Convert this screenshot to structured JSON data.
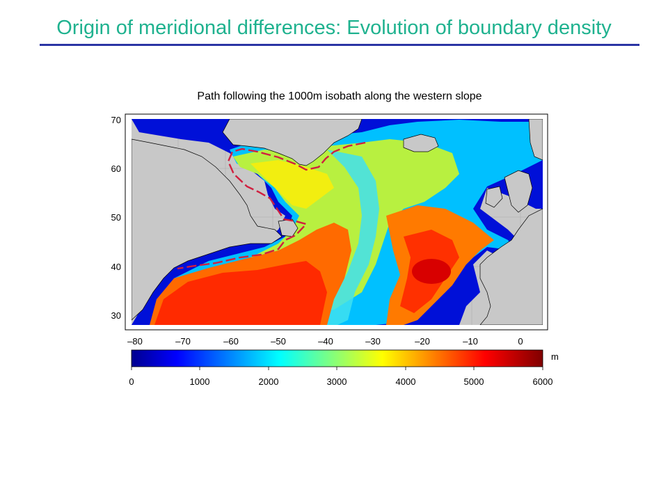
{
  "slide": {
    "title": "Origin of meridional differences: Evolution of boundary density"
  },
  "figure": {
    "title": "Path following the 1000m isobath along the western slope",
    "lat_ticks": [
      "70",
      "60",
      "50",
      "40",
      "30"
    ],
    "lon_ticks": [
      "–80",
      "–70",
      "–60",
      "–50",
      "–40",
      "–30",
      "–20",
      "–10",
      "0"
    ],
    "colorbar": {
      "ticks": [
        "0",
        "1000",
        "2000",
        "3000",
        "4000",
        "5000",
        "6000"
      ],
      "unit": "m",
      "colormap": [
        "#00008f",
        "#0000ff",
        "#00ffff",
        "#ffff00",
        "#ff0000",
        "#800000"
      ]
    },
    "colors": {
      "land": "#c8c8c8",
      "path": "#d02040"
    }
  }
}
